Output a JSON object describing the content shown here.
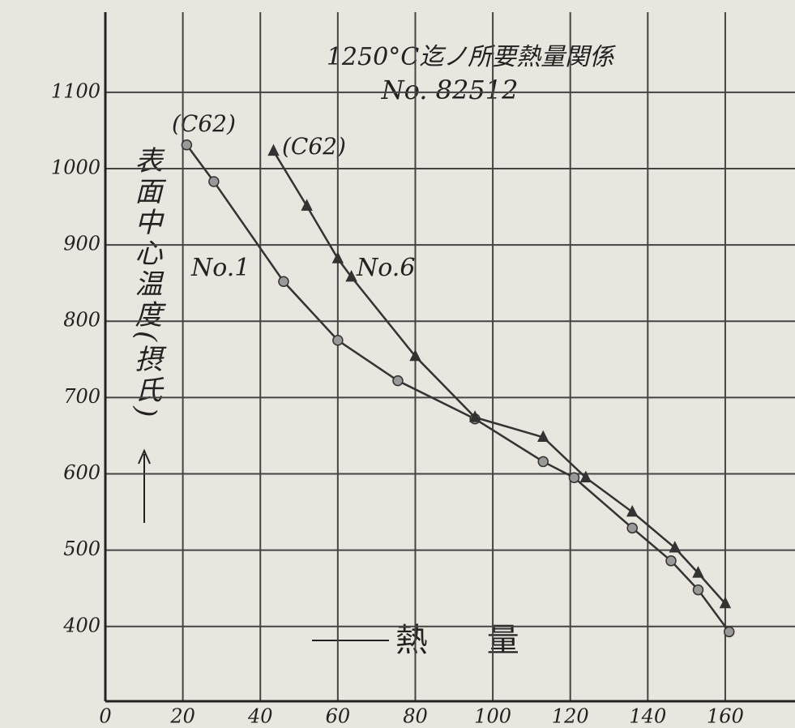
{
  "chart_data": {
    "type": "line",
    "title": "1250°C迄ノ所要熱量関係",
    "subtitle": "No. 82512",
    "y_label": "表面中心温度(摂氏)",
    "x_label": "熱 量",
    "annotations": [
      "(C62)",
      "(C62)",
      "No.1",
      "No.6"
    ],
    "xlim": [
      0,
      178
    ],
    "ylim": [
      302,
      1205
    ],
    "xticks": [
      0,
      20,
      40,
      60,
      80,
      100,
      120,
      140,
      160
    ],
    "yticks": [
      400,
      500,
      600,
      700,
      800,
      900,
      1000,
      1100
    ],
    "grid": true,
    "series": [
      {
        "name": "No.1",
        "color": "#333333",
        "marker": "circle",
        "x": [
          21,
          28,
          46,
          60,
          75.5,
          95.4,
          113,
          121,
          136,
          146,
          153,
          161
        ],
        "values": [
          1031,
          983,
          852,
          775,
          722,
          672,
          616,
          595,
          529,
          486,
          448,
          393
        ]
      },
      {
        "name": "No.6",
        "color": "#333333",
        "marker": "triangle",
        "x": [
          43.4,
          52,
          60,
          63.5,
          80,
          95.4,
          113,
          124,
          136,
          147,
          153,
          160
        ],
        "values": [
          1023,
          951,
          882,
          858,
          754,
          674,
          648,
          595,
          550,
          503,
          470,
          430
        ]
      }
    ]
  }
}
